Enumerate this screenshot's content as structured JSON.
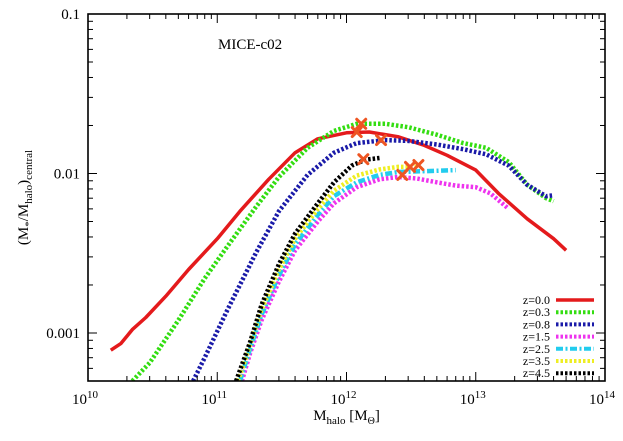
{
  "chart_data": {
    "type": "line",
    "title": "",
    "annotation": "MICE-c02",
    "xlabel": {
      "main": "M",
      "sub": "halo",
      "unit_open": " [M",
      "unit_sub": "Θ",
      "unit_close": "]"
    },
    "ylabel": {
      "open": "(M",
      "sub1": "*",
      "mid": "/M",
      "sub2": "halo",
      "close": ")",
      "sub3": "central"
    },
    "x_scale": "log",
    "y_scale": "log",
    "xlim": [
      10000000000.0,
      100000000000000.0
    ],
    "ylim": [
      0.0005,
      0.1
    ],
    "x_ticks": [
      {
        "value": 10000000000.0,
        "base": "10",
        "exp": "10"
      },
      {
        "value": 100000000000.0,
        "base": "10",
        "exp": "11"
      },
      {
        "value": 1000000000000.0,
        "base": "10",
        "exp": "12"
      },
      {
        "value": 10000000000000.0,
        "base": "10",
        "exp": "13"
      },
      {
        "value": 100000000000000.0,
        "base": "10",
        "exp": "14"
      }
    ],
    "y_ticks": [
      {
        "value": 0.001,
        "label": "0.001"
      },
      {
        "value": 0.01,
        "label": "0.01"
      },
      {
        "value": 0.1,
        "label": "0.1"
      }
    ],
    "grid": false,
    "legend_position": "bottom-right",
    "series": [
      {
        "name": "z=0.0",
        "color": "#e41a1c",
        "dash": "solid",
        "x": [
          15000000000.0,
          18000000000.0,
          22000000000.0,
          28000000000.0,
          40000000000.0,
          60000000000.0,
          100000000000.0,
          150000000000.0,
          250000000000.0,
          400000000000.0,
          600000000000.0,
          1000000000000.0,
          1500000000000.0,
          2500000000000.0,
          4000000000000.0,
          6000000000000.0,
          10000000000000.0,
          15000000000000.0,
          25000000000000.0,
          40000000000000.0,
          50000000000000.0
        ],
        "y": [
          0.00078,
          0.00086,
          0.00105,
          0.00125,
          0.0017,
          0.0025,
          0.0039,
          0.0058,
          0.0092,
          0.0135,
          0.0165,
          0.018,
          0.0182,
          0.017,
          0.015,
          0.013,
          0.0105,
          0.0075,
          0.0052,
          0.0039,
          0.0033
        ]
      },
      {
        "name": "z=0.3",
        "color": "#33dd11",
        "dash": "dotted",
        "x": [
          22000000000.0,
          30000000000.0,
          50000000000.0,
          80000000000.0,
          120000000000.0,
          200000000000.0,
          300000000000.0,
          500000000000.0,
          800000000000.0,
          1200000000000.0,
          2000000000000.0,
          3000000000000.0,
          5000000000000.0,
          8000000000000.0,
          12000000000000.0,
          18000000000000.0,
          25000000000000.0,
          35000000000000.0,
          40000000000000.0
        ],
        "y": [
          0.0005,
          0.00065,
          0.0012,
          0.0022,
          0.0035,
          0.0062,
          0.0095,
          0.0145,
          0.0185,
          0.0205,
          0.0205,
          0.0195,
          0.0175,
          0.0155,
          0.0145,
          0.0118,
          0.0085,
          0.007,
          0.0067
        ]
      },
      {
        "name": "z=0.8",
        "color": "#1a1aa8",
        "dash": "dotted",
        "x": [
          65000000000.0,
          80000000000.0,
          120000000000.0,
          200000000000.0,
          300000000000.0,
          500000000000.0,
          800000000000.0,
          1200000000000.0,
          2000000000000.0,
          3000000000000.0,
          5000000000000.0,
          8000000000000.0,
          12000000000000.0,
          18000000000000.0,
          25000000000000.0,
          35000000000000.0,
          40000000000000.0
        ],
        "y": [
          0.0005,
          0.0007,
          0.0014,
          0.0032,
          0.0058,
          0.0098,
          0.0135,
          0.0155,
          0.0162,
          0.016,
          0.0152,
          0.0142,
          0.0132,
          0.0112,
          0.0085,
          0.0072,
          0.0073
        ]
      },
      {
        "name": "z=1.5",
        "color": "#ee33ee",
        "dash": "dotted",
        "x": [
          155000000000.0,
          180000000000.0,
          220000000000.0,
          300000000000.0,
          400000000000.0,
          600000000000.0,
          800000000000.0,
          1200000000000.0,
          1800000000000.0,
          2500000000000.0,
          3500000000000.0,
          5000000000000.0,
          7000000000000.0,
          10000000000000.0,
          13000000000000.0,
          18000000000000.0
        ],
        "y": [
          0.0005,
          0.00075,
          0.0012,
          0.0021,
          0.0033,
          0.005,
          0.0065,
          0.0082,
          0.0092,
          0.0095,
          0.0093,
          0.0088,
          0.0084,
          0.0082,
          0.0075,
          0.006
        ]
      },
      {
        "name": "z=2.5",
        "color": "#22ccee",
        "dash": "dashdot",
        "x": [
          150000000000.0,
          180000000000.0,
          220000000000.0,
          300000000000.0,
          400000000000.0,
          600000000000.0,
          800000000000.0,
          1200000000000.0,
          1800000000000.0,
          2500000000000.0,
          3500000000000.0,
          5000000000000.0,
          7000000000000.0
        ],
        "y": [
          0.0005,
          0.0008,
          0.0013,
          0.0023,
          0.0036,
          0.0055,
          0.0072,
          0.0088,
          0.0098,
          0.0102,
          0.0103,
          0.0104,
          0.0105
        ]
      },
      {
        "name": "z=3.5",
        "color": "#eeee22",
        "dash": "dotted",
        "x": [
          145000000000.0,
          180000000000.0,
          220000000000.0,
          300000000000.0,
          400000000000.0,
          600000000000.0,
          800000000000.0,
          1200000000000.0,
          1800000000000.0,
          2500000000000.0,
          3500000000000.0
        ],
        "y": [
          0.0005,
          0.00085,
          0.0014,
          0.0025,
          0.0039,
          0.006,
          0.0078,
          0.0097,
          0.0106,
          0.011,
          0.011
        ]
      },
      {
        "name": "z=4.5",
        "color": "#000000",
        "dash": "dotted",
        "x": [
          140000000000.0,
          180000000000.0,
          220000000000.0,
          300000000000.0,
          400000000000.0,
          600000000000.0,
          800000000000.0,
          1100000000000.0,
          1400000000000.0,
          1800000000000.0
        ],
        "y": [
          0.0005,
          0.00088,
          0.0015,
          0.0027,
          0.0042,
          0.0065,
          0.0088,
          0.0112,
          0.0122,
          0.0125
        ]
      }
    ],
    "markers": {
      "shape": "x",
      "color": "#ee5522",
      "points": [
        {
          "x": 1200000000000.0,
          "y": 0.0182
        },
        {
          "x": 1300000000000.0,
          "y": 0.0205
        },
        {
          "x": 1850000000000.0,
          "y": 0.0162
        },
        {
          "x": 1350000000000.0,
          "y": 0.0123
        },
        {
          "x": 2700000000000.0,
          "y": 0.0098
        },
        {
          "x": 3100000000000.0,
          "y": 0.011
        },
        {
          "x": 3600000000000.0,
          "y": 0.0113
        }
      ]
    }
  }
}
